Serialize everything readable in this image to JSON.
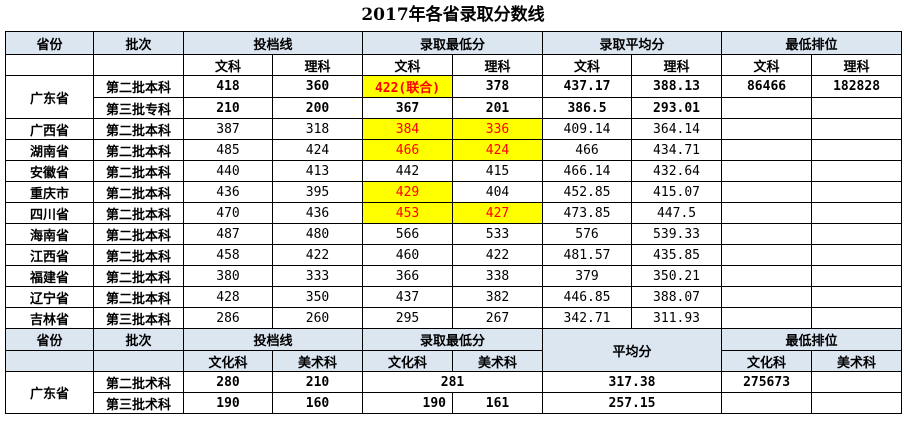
{
  "title": "2017年各省录取分数线",
  "header": {
    "province": "省份",
    "batch": "批次",
    "toudang": "投档线",
    "min_score": "录取最低分",
    "avg_score": "录取平均分",
    "min_rank": "最低排位"
  },
  "subheader": {
    "wen": "文科",
    "li": "理科"
  },
  "guangdong": {
    "province": "广东省",
    "rows": [
      {
        "batch": "第二批本科",
        "td_wen": "418",
        "td_li": "360",
        "min_wen": "422(联合)",
        "min_li": "378",
        "avg_wen": "437.17",
        "avg_li": "388.13",
        "rank_wen": "86466",
        "rank_li": "182828"
      },
      {
        "batch": "第三批专科",
        "td_wen": "210",
        "td_li": "200",
        "min_wen": "367",
        "min_li": "201",
        "avg_wen": "386.5",
        "avg_li": "293.01",
        "rank_wen": "",
        "rank_li": ""
      }
    ]
  },
  "rows": [
    {
      "province": "广西省",
      "batch": "第二批本科",
      "td_wen": "387",
      "td_li": "318",
      "min_wen": "384",
      "min_li": "336",
      "avg_wen": "409.14",
      "avg_li": "364.14"
    },
    {
      "province": "湖南省",
      "batch": "第二批本科",
      "td_wen": "485",
      "td_li": "424",
      "min_wen": "466",
      "min_li": "424",
      "avg_wen": "466",
      "avg_li": "434.71"
    },
    {
      "province": "安徽省",
      "batch": "第二批本科",
      "td_wen": "440",
      "td_li": "413",
      "min_wen": "442",
      "min_li": "415",
      "avg_wen": "466.14",
      "avg_li": "432.64"
    },
    {
      "province": "重庆市",
      "batch": "第二批本科",
      "td_wen": "436",
      "td_li": "395",
      "min_wen": "429",
      "min_li": "404",
      "avg_wen": "452.85",
      "avg_li": "415.07"
    },
    {
      "province": "四川省",
      "batch": "第二批本科",
      "td_wen": "470",
      "td_li": "436",
      "min_wen": "453",
      "min_li": "427",
      "avg_wen": "473.85",
      "avg_li": "447.5"
    },
    {
      "province": "海南省",
      "batch": "第二批本科",
      "td_wen": "487",
      "td_li": "480",
      "min_wen": "566",
      "min_li": "533",
      "avg_wen": "576",
      "avg_li": "539.33"
    },
    {
      "province": "江西省",
      "batch": "第二批本科",
      "td_wen": "458",
      "td_li": "422",
      "min_wen": "460",
      "min_li": "422",
      "avg_wen": "481.57",
      "avg_li": "435.85"
    },
    {
      "province": "福建省",
      "batch": "第二批本科",
      "td_wen": "380",
      "td_li": "333",
      "min_wen": "366",
      "min_li": "338",
      "avg_wen": "379",
      "avg_li": "350.21"
    },
    {
      "province": "辽宁省",
      "batch": "第二批本科",
      "td_wen": "428",
      "td_li": "350",
      "min_wen": "437",
      "min_li": "382",
      "avg_wen": "446.85",
      "avg_li": "388.07"
    },
    {
      "province": "吉林省",
      "batch": "第三批本科",
      "td_wen": "286",
      "td_li": "260",
      "min_wen": "295",
      "min_li": "267",
      "avg_wen": "342.71",
      "avg_li": "311.93"
    }
  ],
  "art": {
    "header": {
      "province": "省份",
      "batch": "批次",
      "toudang": "投档线",
      "min_score": "录取最低分",
      "avg_score": "平均分",
      "min_rank": "最低排位"
    },
    "subheader": {
      "culture": "文化科",
      "art": "美术科"
    },
    "province": "广东省",
    "rows": [
      {
        "batch": "第二批术科",
        "td_culture": "280",
        "td_art": "210",
        "min_culture": "281",
        "avg": "317.38",
        "rank_culture": "275673"
      },
      {
        "batch": "第三批术科",
        "td_culture": "190",
        "td_art": "160",
        "min_culture": "190",
        "min_art": "161",
        "avg": "257.15"
      }
    ]
  },
  "colors": {
    "header_bg": "#dbe6f1",
    "highlight_bg": "#ffff00",
    "highlight_text": "#ff0000"
  }
}
